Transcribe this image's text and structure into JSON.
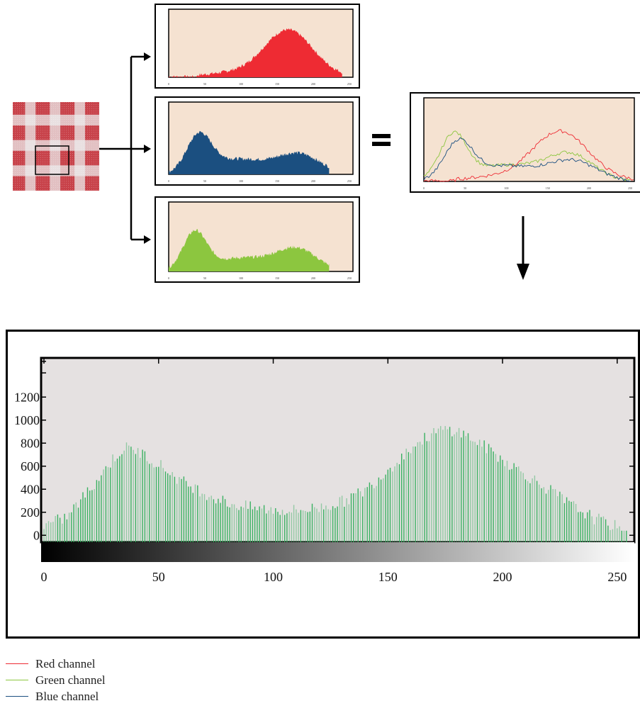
{
  "colors": {
    "red": "#ee2b33",
    "blue": "#1b4f80",
    "green": "#8cc63f",
    "panel_bg": "#f5e2d1",
    "big_bg": "#e5e1e1",
    "bar_green": "#2fae5a"
  },
  "mini_tick_labels": {
    "x": [
      "0",
      "50",
      "100",
      "150",
      "200",
      "250"
    ]
  },
  "equals_sign": "=",
  "chart_data": [
    {
      "type": "area",
      "name": "red-channel-histogram",
      "x_range": [
        0,
        255
      ],
      "peak_at": 165,
      "shape": "single hump, rises from ~100 to peak near 165, ends at ~240"
    },
    {
      "type": "area",
      "name": "blue-channel-histogram",
      "x_range": [
        0,
        255
      ],
      "shape": "bimodal, peaks near 40 and 180, ends at ~220"
    },
    {
      "type": "area",
      "name": "green-channel-histogram",
      "x_range": [
        0,
        255
      ],
      "shape": "bimodal, peaks near 35 and 180, ends at ~220"
    },
    {
      "type": "line",
      "name": "combined-histogram",
      "series": [
        {
          "name": "Red channel",
          "color": "#ee2b33"
        },
        {
          "name": "Green channel",
          "color": "#8cc63f"
        },
        {
          "name": "Blue channel",
          "color": "#1b4f80"
        }
      ]
    },
    {
      "type": "bar",
      "name": "green-channel-detail",
      "xlim": [
        0,
        255
      ],
      "ylim": [
        -150,
        1450
      ],
      "x_ticks": [
        "0",
        "50",
        "100",
        "150",
        "200",
        "250"
      ],
      "y_ticks": [
        "0",
        "200",
        "400",
        "600",
        "800",
        "1000",
        "1200"
      ],
      "x": [
        0,
        10,
        20,
        30,
        35,
        40,
        50,
        60,
        70,
        80,
        90,
        100,
        110,
        120,
        130,
        140,
        150,
        160,
        170,
        175,
        180,
        190,
        200,
        210,
        220,
        230,
        240,
        250,
        255
      ],
      "values": [
        40,
        120,
        360,
        620,
        720,
        700,
        580,
        430,
        330,
        240,
        200,
        180,
        175,
        200,
        250,
        350,
        530,
        720,
        850,
        880,
        870,
        760,
        620,
        490,
        360,
        220,
        110,
        30,
        0
      ]
    }
  ],
  "legend": [
    {
      "label": "Red channel",
      "color": "#ee2b33"
    },
    {
      "label": "Green channel",
      "color": "#8cc63f"
    },
    {
      "label": "Blue channel",
      "color": "#1b4f80"
    }
  ]
}
